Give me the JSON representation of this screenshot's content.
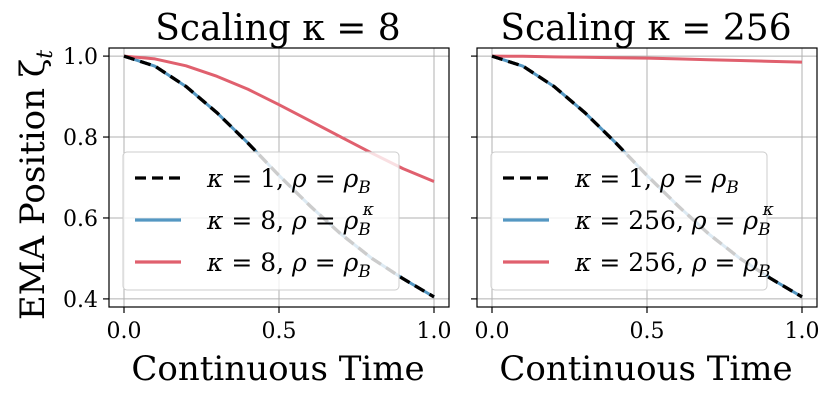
{
  "chart_data": [
    {
      "type": "line",
      "title": "Scaling κ = 8",
      "xlabel": "Continuous Time",
      "ylabel": "EMA Position ζ",
      "ylabel_sub": "t",
      "xlim": [
        0.0,
        1.0
      ],
      "ylim": [
        0.38,
        1.02
      ],
      "xticks": [
        0.0,
        0.5,
        1.0
      ],
      "xtick_labels": [
        "0.0",
        "0.5",
        "1.0"
      ],
      "yticks": [
        0.4,
        0.6,
        0.8,
        1.0
      ],
      "ytick_labels": [
        "0.4",
        "0.6",
        "0.8",
        "1.0"
      ],
      "grid": true,
      "legend": "lower-left",
      "x": [
        0.0,
        0.1,
        0.2,
        0.3,
        0.4,
        0.5,
        0.6,
        0.7,
        0.8,
        0.9,
        1.0
      ],
      "series": [
        {
          "name": "κ = 1, ρ = ρB",
          "name_parts": {
            "k": "1",
            "sup": ""
          },
          "color": "#000000",
          "style": "dashed",
          "values": [
            1.0,
            0.975,
            0.925,
            0.86,
            0.785,
            0.705,
            0.63,
            0.56,
            0.5,
            0.45,
            0.405
          ]
        },
        {
          "name": "κ = 8, ρ = ρBκ",
          "name_parts": {
            "k": "8",
            "sup": "κ"
          },
          "color": "#5497c2",
          "style": "solid",
          "values": [
            1.0,
            0.975,
            0.925,
            0.86,
            0.785,
            0.705,
            0.63,
            0.56,
            0.5,
            0.45,
            0.405
          ]
        },
        {
          "name": "κ = 8, ρ = ρB",
          "name_parts": {
            "k": "8",
            "sup": ""
          },
          "color": "#e0606e",
          "style": "solid",
          "values": [
            1.0,
            0.993,
            0.976,
            0.95,
            0.918,
            0.88,
            0.84,
            0.8,
            0.76,
            0.722,
            0.69
          ]
        }
      ]
    },
    {
      "type": "line",
      "title": "Scaling κ = 256",
      "xlabel": "Continuous Time",
      "xlim": [
        0.0,
        1.0
      ],
      "ylim": [
        0.38,
        1.02
      ],
      "xticks": [
        0.0,
        0.5,
        1.0
      ],
      "xtick_labels": [
        "0.0",
        "0.5",
        "1.0"
      ],
      "yticks": [
        0.4,
        0.6,
        0.8,
        1.0
      ],
      "grid": true,
      "legend": "lower-left",
      "x": [
        0.0,
        0.1,
        0.2,
        0.3,
        0.4,
        0.5,
        0.6,
        0.7,
        0.8,
        0.9,
        1.0
      ],
      "series": [
        {
          "name": "κ = 1, ρ = ρB",
          "name_parts": {
            "k": "1",
            "sup": ""
          },
          "color": "#000000",
          "style": "dashed",
          "values": [
            1.0,
            0.975,
            0.925,
            0.86,
            0.785,
            0.705,
            0.63,
            0.56,
            0.5,
            0.45,
            0.405
          ]
        },
        {
          "name": "κ = 256, ρ = ρBκ",
          "name_parts": {
            "k": "256",
            "sup": "κ"
          },
          "color": "#5497c2",
          "style": "solid",
          "values": [
            1.0,
            0.975,
            0.925,
            0.86,
            0.785,
            0.705,
            0.63,
            0.56,
            0.5,
            0.45,
            0.405
          ]
        },
        {
          "name": "κ = 256, ρ = ρB",
          "name_parts": {
            "k": "256",
            "sup": ""
          },
          "color": "#e0606e",
          "style": "solid",
          "values": [
            1.0,
            0.9995,
            0.998,
            0.997,
            0.996,
            0.995,
            0.993,
            0.991,
            0.989,
            0.987,
            0.985
          ]
        }
      ]
    }
  ]
}
